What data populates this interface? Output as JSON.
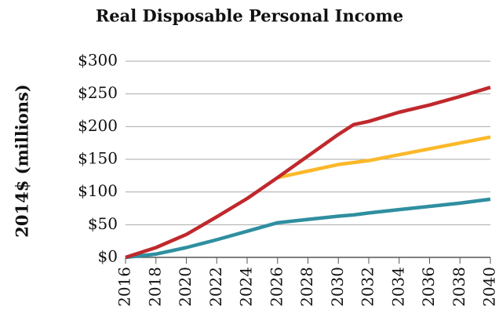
{
  "chart_data": {
    "type": "line",
    "title": "Real Disposable Personal Income",
    "y_label": "2014$ (millions)",
    "x": [
      2016,
      2018,
      2020,
      2022,
      2024,
      2026,
      2028,
      2030,
      2031,
      2032,
      2034,
      2036,
      2038,
      2040
    ],
    "series": [
      {
        "color": "#2f8fa0",
        "values": [
          0,
          5,
          15,
          27,
          40,
          53,
          58,
          63,
          65,
          68,
          73,
          78,
          83,
          89
        ]
      },
      {
        "color": "#fbb829",
        "values": [
          null,
          null,
          null,
          null,
          null,
          122,
          132,
          142,
          145,
          148,
          157,
          166,
          175,
          184
        ]
      },
      {
        "color": "#c0282d",
        "values": [
          0,
          15,
          35,
          62,
          90,
          122,
          155,
          188,
          203,
          208,
          222,
          233,
          246,
          260
        ]
      }
    ],
    "xlim": [
      2016,
      2040
    ],
    "xticks": [
      2016,
      2018,
      2020,
      2022,
      2024,
      2026,
      2028,
      2030,
      2032,
      2034,
      2036,
      2038,
      2040
    ],
    "ylim": [
      0,
      300
    ],
    "yticks": [
      {
        "value": 0,
        "label": "$0"
      },
      {
        "value": 50,
        "label": "$50"
      },
      {
        "value": 100,
        "label": "$100"
      },
      {
        "value": 150,
        "label": "$150"
      },
      {
        "value": 200,
        "label": "$200"
      },
      {
        "value": 250,
        "label": "$250"
      },
      {
        "value": 300,
        "label": "$300"
      }
    ],
    "grid": true
  }
}
